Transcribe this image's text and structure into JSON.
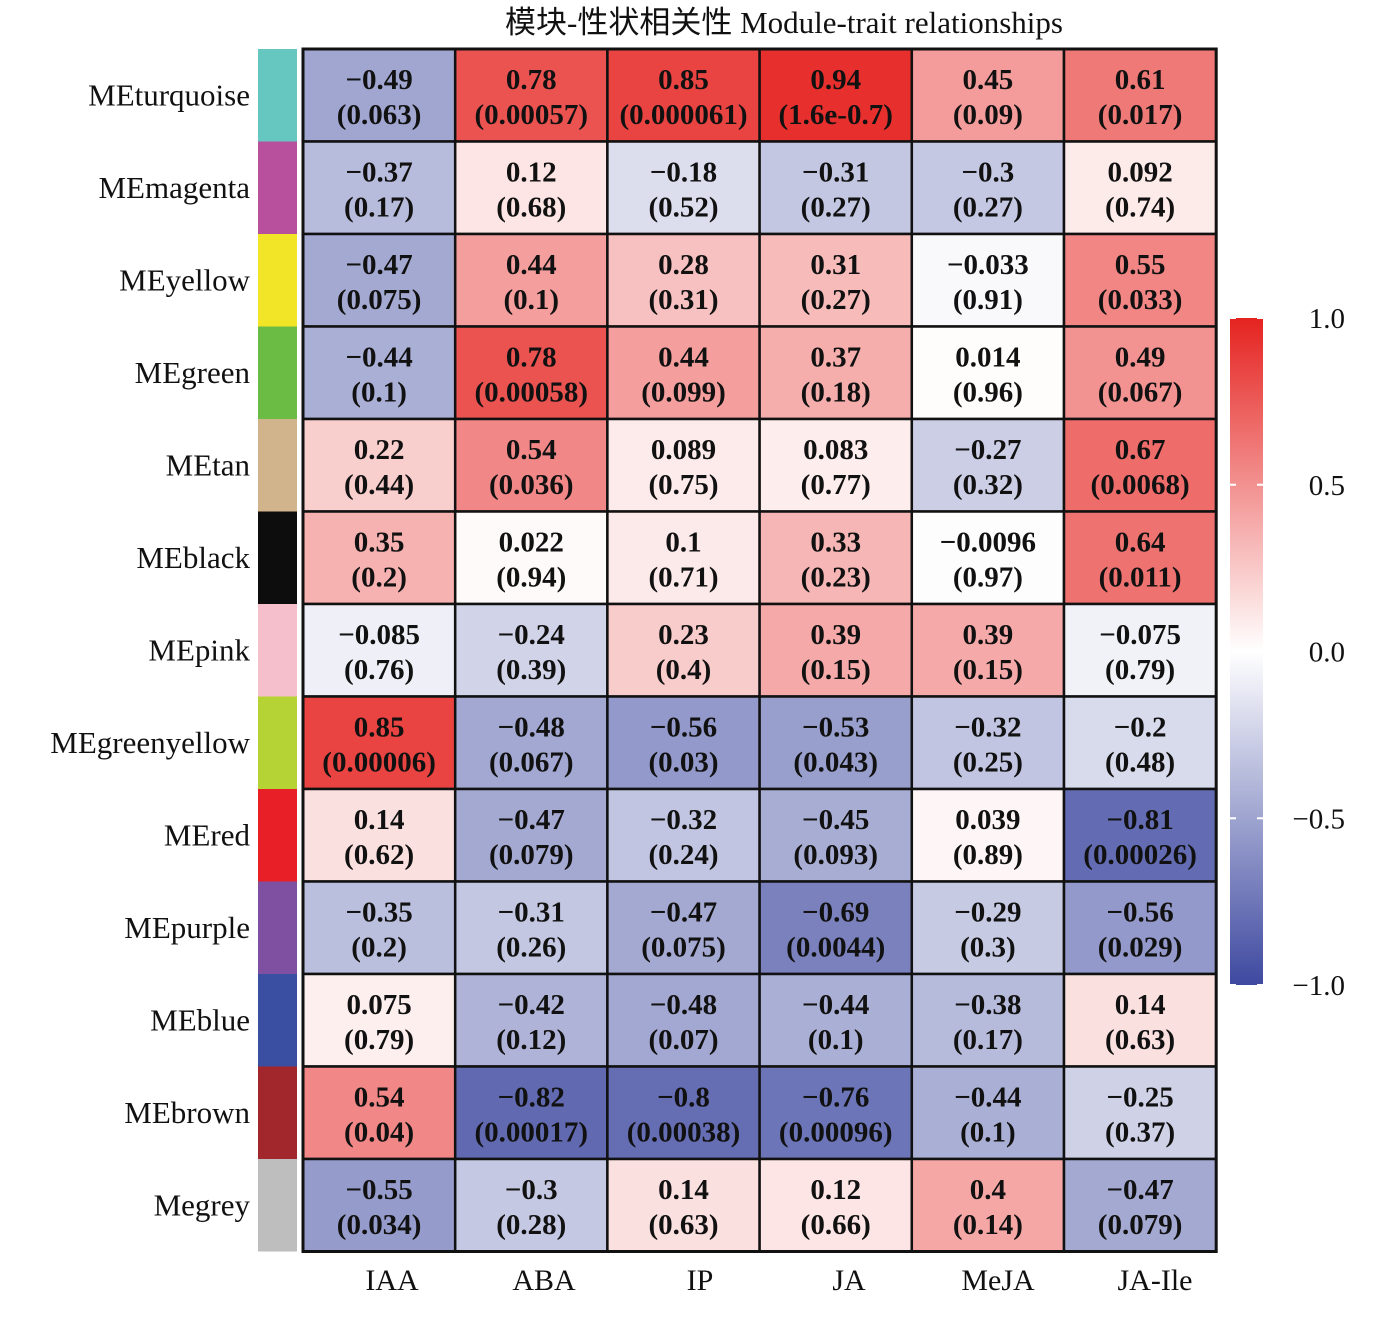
{
  "chart_data": {
    "type": "heatmap",
    "title": "模块-性状相关性 Module-trait relationships",
    "columns": [
      "IAA",
      "ABA",
      "IP",
      "JA",
      "MeJA",
      "JA-Ile"
    ],
    "rows": [
      {
        "label": "MEturquoise",
        "swatch": "#66c6c0",
        "values": [
          -0.49,
          0.78,
          0.85,
          0.94,
          0.45,
          0.61
        ],
        "pvalues": [
          "(0.063)",
          "(0.00057)",
          "(0.000061)",
          "(1.6e-0.7)",
          "(0.09)",
          "(0.017)"
        ],
        "labels": [
          "−0.49",
          "0.78",
          "0.85",
          "0.94",
          "0.45",
          "0.61"
        ]
      },
      {
        "label": "MEmagenta",
        "swatch": "#b9509d",
        "values": [
          -0.37,
          0.12,
          -0.18,
          -0.31,
          -0.3,
          0.092
        ],
        "pvalues": [
          "(0.17)",
          "(0.68)",
          "(0.52)",
          "(0.27)",
          "(0.27)",
          "(0.74)"
        ],
        "labels": [
          "−0.37",
          "0.12",
          "−0.18",
          "−0.31",
          "−0.3",
          "0.092"
        ]
      },
      {
        "label": "MEyellow",
        "swatch": "#f2e527",
        "values": [
          -0.47,
          0.44,
          0.28,
          0.31,
          -0.033,
          0.55
        ],
        "pvalues": [
          "(0.075)",
          "(0.1)",
          "(0.31)",
          "(0.27)",
          "(0.91)",
          "(0.033)"
        ],
        "labels": [
          "−0.47",
          "0.44",
          "0.28",
          "0.31",
          "−0.033",
          "0.55"
        ]
      },
      {
        "label": "MEgreen",
        "swatch": "#6abc45",
        "values": [
          -0.44,
          0.78,
          0.44,
          0.37,
          0.014,
          0.49
        ],
        "pvalues": [
          "(0.1)",
          "(0.00058)",
          "(0.099)",
          "(0.18)",
          "(0.96)",
          "(0.067)"
        ],
        "labels": [
          "−0.44",
          "0.78",
          "0.44",
          "0.37",
          "0.014",
          "0.49"
        ]
      },
      {
        "label": "MEtan",
        "swatch": "#d2b48c",
        "values": [
          0.22,
          0.54,
          0.089,
          0.083,
          -0.27,
          0.67
        ],
        "pvalues": [
          "(0.44)",
          "(0.036)",
          "(0.75)",
          "(0.77)",
          "(0.32)",
          "(0.0068)"
        ],
        "labels": [
          "0.22",
          "0.54",
          "0.089",
          "0.083",
          "−0.27",
          "0.67"
        ]
      },
      {
        "label": "MEblack",
        "swatch": "#0d0d0d",
        "values": [
          0.35,
          0.022,
          0.1,
          0.33,
          -0.0096,
          0.64
        ],
        "pvalues": [
          "(0.2)",
          "(0.94)",
          "(0.71)",
          "(0.23)",
          "(0.97)",
          "(0.011)"
        ],
        "labels": [
          "0.35",
          "0.022",
          "0.1",
          "0.33",
          "−0.0096",
          "0.64"
        ]
      },
      {
        "label": "MEpink",
        "swatch": "#f5c0cc",
        "values": [
          -0.085,
          -0.24,
          0.23,
          0.39,
          0.39,
          -0.075
        ],
        "pvalues": [
          "(0.76)",
          "(0.39)",
          "(0.4)",
          "(0.15)",
          "(0.15)",
          "(0.79)"
        ],
        "labels": [
          "−0.085",
          "−0.24",
          "0.23",
          "0.39",
          "0.39",
          "−0.075"
        ]
      },
      {
        "label": "MEgreenyellow",
        "swatch": "#b5d334",
        "values": [
          0.85,
          -0.48,
          -0.56,
          -0.53,
          -0.32,
          -0.2
        ],
        "pvalues": [
          "(0.00006)",
          "(0.067)",
          "(0.03)",
          "(0.043)",
          "(0.25)",
          "(0.48)"
        ],
        "labels": [
          "0.85",
          "−0.48",
          "−0.56",
          "−0.53",
          "−0.32",
          "−0.2"
        ]
      },
      {
        "label": "MEred",
        "swatch": "#e81f27",
        "values": [
          0.14,
          -0.47,
          -0.32,
          -0.45,
          0.039,
          -0.81
        ],
        "pvalues": [
          "(0.62)",
          "(0.079)",
          "(0.24)",
          "(0.093)",
          "(0.89)",
          "(0.00026)"
        ],
        "labels": [
          "0.14",
          "−0.47",
          "−0.32",
          "−0.45",
          "0.039",
          "−0.81"
        ]
      },
      {
        "label": "MEpurple",
        "swatch": "#7f50a2",
        "values": [
          -0.35,
          -0.31,
          -0.47,
          -0.69,
          -0.29,
          -0.56
        ],
        "pvalues": [
          "(0.2)",
          "(0.26)",
          "(0.075)",
          "(0.0044)",
          "(0.3)",
          "(0.029)"
        ],
        "labels": [
          "−0.35",
          "−0.31",
          "−0.47",
          "−0.69",
          "−0.29",
          "−0.56"
        ]
      },
      {
        "label": "MEblue",
        "swatch": "#3a4fa2",
        "values": [
          0.075,
          -0.42,
          -0.48,
          -0.44,
          -0.38,
          0.14
        ],
        "pvalues": [
          "(0.79)",
          "(0.12)",
          "(0.07)",
          "(0.1)",
          "(0.17)",
          "(0.63)"
        ],
        "labels": [
          "0.075",
          "−0.42",
          "−0.48",
          "−0.44",
          "−0.38",
          "0.14"
        ]
      },
      {
        "label": "MEbrown",
        "swatch": "#a1272c",
        "values": [
          0.54,
          -0.82,
          -0.8,
          -0.76,
          -0.44,
          -0.25
        ],
        "pvalues": [
          "(0.04)",
          "(0.00017)",
          "(0.00038)",
          "(0.00096)",
          "(0.1)",
          "(0.37)"
        ],
        "labels": [
          "0.54",
          "−0.82",
          "−0.8",
          "−0.76",
          "−0.44",
          "−0.25"
        ]
      },
      {
        "label": "Megrey",
        "swatch": "#bebebe",
        "values": [
          -0.55,
          -0.3,
          0.14,
          0.12,
          0.4,
          -0.47
        ],
        "pvalues": [
          "(0.034)",
          "(0.28)",
          "(0.63)",
          "(0.66)",
          "(0.14)",
          "(0.079)"
        ],
        "labels": [
          "−0.55",
          "−0.3",
          "0.14",
          "0.12",
          "0.4",
          "−0.47"
        ]
      }
    ],
    "colorbar": {
      "range": [
        -1.0,
        1.0
      ],
      "ticks": [
        "1.0",
        "0.5",
        "0.0",
        "−0.5",
        "−1.0"
      ],
      "tick_values": [
        1.0,
        0.5,
        0.0,
        -0.5,
        -1.0
      ],
      "low_color": "#3e49a0",
      "mid_color": "#ffffff",
      "high_color": "#e52320"
    }
  }
}
